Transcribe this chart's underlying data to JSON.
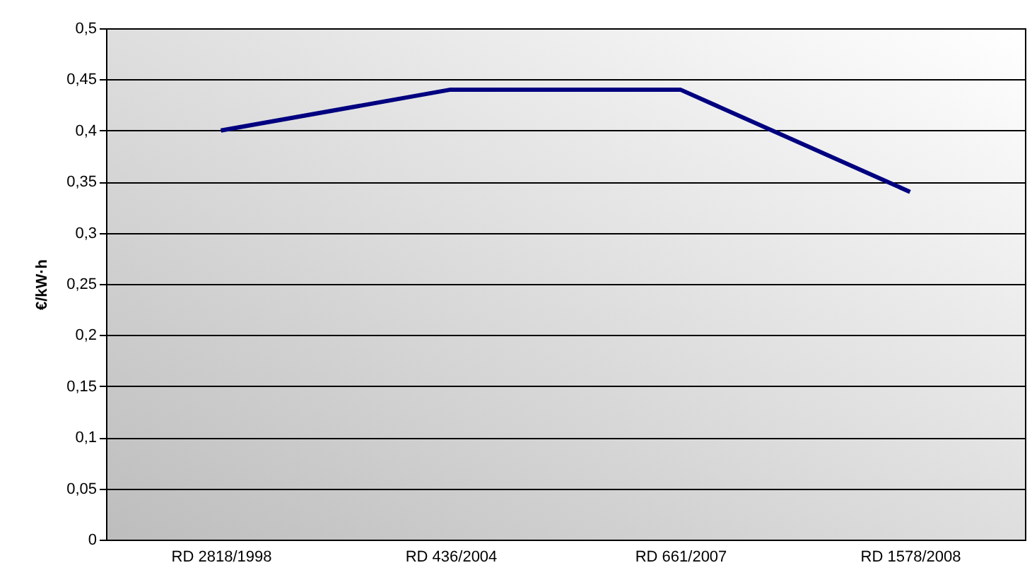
{
  "chart_data": {
    "type": "line",
    "ylabel": "€/kW·h",
    "categories": [
      "RD 2818/1998",
      "RD 436/2004",
      "RD 661/2007",
      "RD 1578/2008"
    ],
    "series": [
      {
        "color": "#000080",
        "values": [
          0.4,
          0.44,
          0.44,
          0.34
        ]
      }
    ],
    "ylim": [
      0,
      0.5
    ],
    "yticks": [
      {
        "value": 0,
        "label": "0"
      },
      {
        "value": 0.05,
        "label": "0,05"
      },
      {
        "value": 0.1,
        "label": "0,1"
      },
      {
        "value": 0.15,
        "label": "0,15"
      },
      {
        "value": 0.2,
        "label": "0,2"
      },
      {
        "value": 0.25,
        "label": "0,25"
      },
      {
        "value": 0.3,
        "label": "0,3"
      },
      {
        "value": 0.35,
        "label": "0,35"
      },
      {
        "value": 0.4,
        "label": "0,4"
      },
      {
        "value": 0.45,
        "label": "0,45"
      },
      {
        "value": 0.5,
        "label": "0,5"
      }
    ],
    "grid": "y",
    "legend": false,
    "marker": "none",
    "line_style": "solid"
  }
}
